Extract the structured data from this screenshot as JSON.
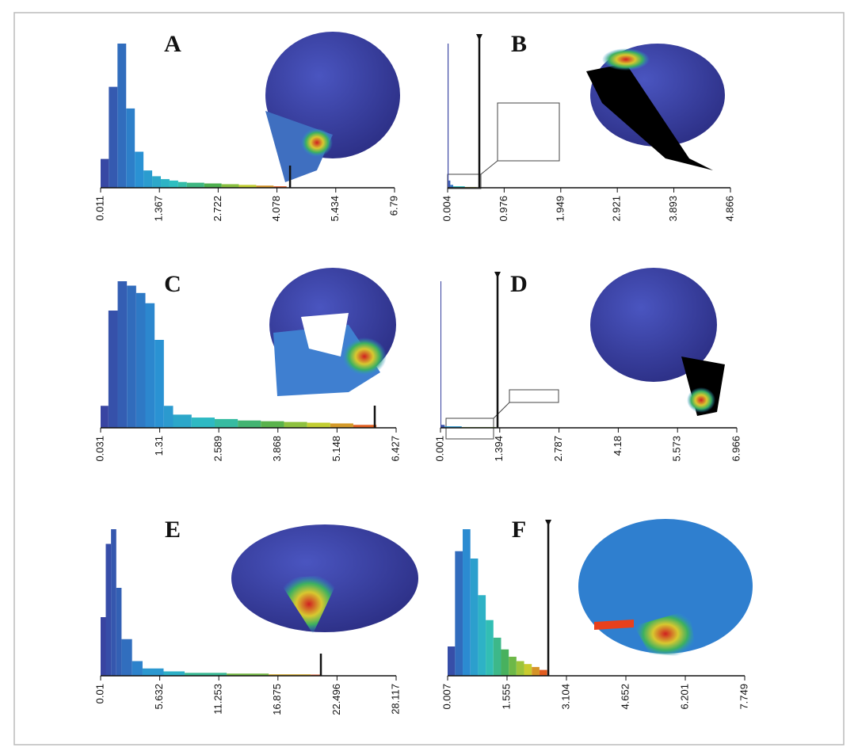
{
  "chart_data": [
    {
      "type": "histogram",
      "label": "A",
      "bins": [
        0.011,
        0.2,
        0.4,
        0.6,
        0.8,
        1.0,
        1.2,
        1.4,
        1.6,
        1.8,
        2.0,
        2.4,
        2.8,
        3.2,
        3.6,
        4.0,
        4.3
      ],
      "values": [
        20,
        70,
        100,
        55,
        25,
        12,
        8,
        6,
        5,
        4,
        3.5,
        3,
        2.5,
        2,
        1.5,
        1
      ],
      "xlim": [
        0.011,
        6.79
      ],
      "xticks": [
        0.011,
        1.367,
        2.722,
        4.078,
        5.434,
        6.79
      ],
      "ylim": [
        0,
        100
      ],
      "threshold": 4.38
    },
    {
      "type": "histogram",
      "label": "B",
      "bins": [
        0.004,
        0.02,
        0.05,
        0.1,
        0.3,
        0.5
      ],
      "values": [
        100,
        5,
        2,
        1,
        0.5
      ],
      "xlim": [
        0.004,
        4.866
      ],
      "xticks": [
        0.004,
        0.976,
        1.949,
        2.921,
        3.893,
        4.866
      ],
      "ylim": [
        0,
        100
      ],
      "threshold": 0.549
    },
    {
      "type": "histogram",
      "label": "C",
      "bins": [
        0.031,
        0.2,
        0.4,
        0.6,
        0.8,
        1.0,
        1.2,
        1.4,
        1.6,
        2.0,
        2.5,
        3.0,
        3.5,
        4.0,
        4.5,
        5.0,
        5.5,
        6.0
      ],
      "values": [
        15,
        80,
        100,
        97,
        92,
        85,
        60,
        15,
        9,
        7,
        6,
        5,
        4.5,
        4,
        3.5,
        3,
        2
      ],
      "xlim": [
        0.031,
        6.427
      ],
      "xticks": [
        0.031,
        1.31,
        2.589,
        3.868,
        5.148,
        6.427
      ],
      "ylim": [
        0,
        100
      ],
      "threshold": 5.964
    },
    {
      "type": "histogram",
      "label": "D",
      "bins": [
        0.001,
        0.02,
        0.1,
        0.5,
        1.3
      ],
      "values": [
        100,
        2,
        1,
        0.5
      ],
      "xlim": [
        0.001,
        6.966
      ],
      "xticks": [
        0.001,
        1.394,
        2.787,
        4.18,
        5.573,
        6.966
      ],
      "ylim": [
        0,
        100
      ],
      "threshold": 1.342
    },
    {
      "type": "histogram",
      "label": "E",
      "bins": [
        0.01,
        0.5,
        1.0,
        1.5,
        2.0,
        3.0,
        4.0,
        6.0,
        8.0,
        12,
        16,
        20,
        21
      ],
      "values": [
        40,
        90,
        100,
        60,
        25,
        10,
        5,
        3,
        2,
        1.5,
        1,
        0.8
      ],
      "xlim": [
        0.01,
        28.117
      ],
      "xticks": [
        0.01,
        5.632,
        11.253,
        16.875,
        22.496,
        28.117
      ],
      "ylim": [
        0,
        100
      ],
      "threshold": 20.96
    },
    {
      "type": "histogram",
      "label": "F",
      "bins": [
        0.007,
        0.2,
        0.4,
        0.6,
        0.8,
        1.0,
        1.2,
        1.4,
        1.6,
        1.8,
        2.0,
        2.2,
        2.4,
        2.6
      ],
      "values": [
        20,
        85,
        100,
        80,
        55,
        38,
        26,
        18,
        13,
        10,
        8,
        6,
        4
      ],
      "xlim": [
        0.007,
        7.749
      ],
      "xticks": [
        0.007,
        1.555,
        3.104,
        4.652,
        6.201,
        7.749
      ],
      "ylim": [
        0,
        100
      ],
      "threshold": 2.63
    }
  ],
  "colormap": [
    "#3a3f9e",
    "#2a8fd4",
    "#2fc0c0",
    "#4caf50",
    "#c8d030",
    "#e8401c"
  ]
}
